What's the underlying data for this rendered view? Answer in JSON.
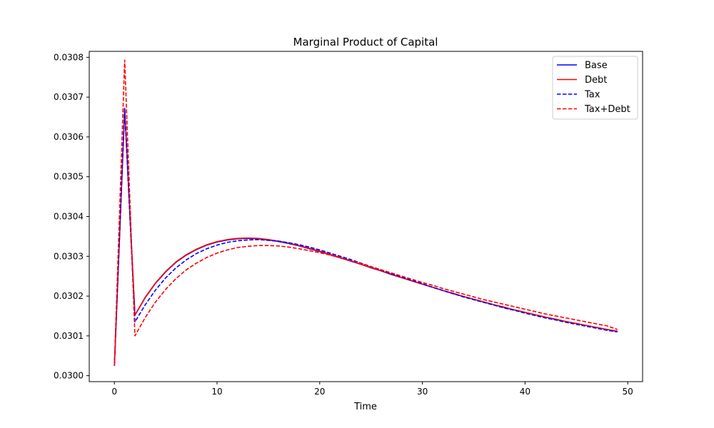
{
  "chart_data": {
    "type": "line",
    "title": "Marginal Product of Capital",
    "xlabel": "Time",
    "ylabel": "",
    "xlim": [
      -2.45,
      51.45
    ],
    "ylim": [
      0.029985,
      0.030815
    ],
    "xticks": [
      0,
      10,
      20,
      30,
      40,
      50
    ],
    "yticks": [
      0.03,
      0.0301,
      0.0302,
      0.0303,
      0.0304,
      0.0305,
      0.0306,
      0.0307,
      0.0308
    ],
    "ytick_labels": [
      "0.0300",
      "0.0301",
      "0.0302",
      "0.0303",
      "0.0304",
      "0.0305",
      "0.0306",
      "0.0307",
      "0.0308"
    ],
    "grid": false,
    "legend_position": "top-right",
    "x": [
      0,
      1,
      2,
      3,
      4,
      5,
      6,
      7,
      8,
      9,
      10,
      11,
      12,
      13,
      14,
      15,
      16,
      17,
      18,
      19,
      20,
      21,
      22,
      23,
      24,
      25,
      26,
      27,
      28,
      29,
      30,
      31,
      32,
      33,
      34,
      35,
      36,
      37,
      38,
      39,
      40,
      41,
      42,
      43,
      44,
      45,
      46,
      47,
      48,
      49
    ],
    "series": [
      {
        "name": "Base",
        "color": "#0000ff",
        "dash": "solid",
        "values": [
          0.030025,
          0.030672,
          0.030152,
          0.030196,
          0.030232,
          0.030261,
          0.030285,
          0.030303,
          0.030317,
          0.030328,
          0.030336,
          0.030341,
          0.030344,
          0.030345,
          0.030344,
          0.030341,
          0.030337,
          0.030332,
          0.030326,
          0.030319,
          0.030312,
          0.030304,
          0.030296,
          0.030288,
          0.03028,
          0.030271,
          0.030263,
          0.030254,
          0.030246,
          0.030238,
          0.03023,
          0.030222,
          0.030214,
          0.030206,
          0.030199,
          0.030192,
          0.030185,
          0.030178,
          0.030171,
          0.030165,
          0.030159,
          0.030153,
          0.030147,
          0.030141,
          0.030136,
          0.030131,
          0.030126,
          0.030121,
          0.030116,
          0.030111
        ]
      },
      {
        "name": "Debt",
        "color": "#ff0000",
        "dash": "solid",
        "values": [
          0.030025,
          0.030672,
          0.030152,
          0.030197,
          0.030233,
          0.030262,
          0.030286,
          0.030304,
          0.030318,
          0.030329,
          0.030337,
          0.030342,
          0.030345,
          0.030346,
          0.030345,
          0.030342,
          0.030338,
          0.030333,
          0.030327,
          0.03032,
          0.030313,
          0.030305,
          0.030297,
          0.030289,
          0.03028,
          0.030272,
          0.030263,
          0.030255,
          0.030246,
          0.030238,
          0.03023,
          0.030222,
          0.030214,
          0.030207,
          0.030199,
          0.030192,
          0.030185,
          0.030178,
          0.030172,
          0.030165,
          0.030159,
          0.030153,
          0.030147,
          0.030142,
          0.030136,
          0.030131,
          0.030126,
          0.030121,
          0.030116,
          0.030112
        ]
      },
      {
        "name": "Tax",
        "color": "#0000ff",
        "dash": "dashed",
        "values": [
          0.030025,
          0.030672,
          0.030135,
          0.030178,
          0.030215,
          0.030246,
          0.030271,
          0.030291,
          0.030307,
          0.030319,
          0.030328,
          0.030335,
          0.030339,
          0.030341,
          0.030342,
          0.03034,
          0.030338,
          0.030334,
          0.030329,
          0.030323,
          0.030316,
          0.030308,
          0.0303,
          0.030292,
          0.030283,
          0.030274,
          0.030265,
          0.030256,
          0.030248,
          0.030239,
          0.030231,
          0.030222,
          0.030214,
          0.030206,
          0.030198,
          0.030191,
          0.030184,
          0.030177,
          0.03017,
          0.030164,
          0.030157,
          0.030151,
          0.030145,
          0.03014,
          0.030134,
          0.030129,
          0.030124,
          0.030119,
          0.030114,
          0.03011
        ]
      },
      {
        "name": "Tax+Debt",
        "color": "#ff0000",
        "dash": "dashed",
        "values": [
          0.030025,
          0.030793,
          0.0301,
          0.030146,
          0.030185,
          0.030217,
          0.030244,
          0.030266,
          0.030283,
          0.030297,
          0.030308,
          0.030316,
          0.030322,
          0.030325,
          0.030327,
          0.030327,
          0.030326,
          0.030323,
          0.030319,
          0.030314,
          0.030309,
          0.030303,
          0.030296,
          0.030289,
          0.030282,
          0.030274,
          0.030266,
          0.030258,
          0.03025,
          0.030242,
          0.030234,
          0.030227,
          0.030219,
          0.030212,
          0.030205,
          0.030198,
          0.030191,
          0.030185,
          0.030179,
          0.030173,
          0.030167,
          0.030161,
          0.030155,
          0.03015,
          0.030145,
          0.03014,
          0.030135,
          0.03013,
          0.030125,
          0.030116
        ]
      }
    ]
  }
}
